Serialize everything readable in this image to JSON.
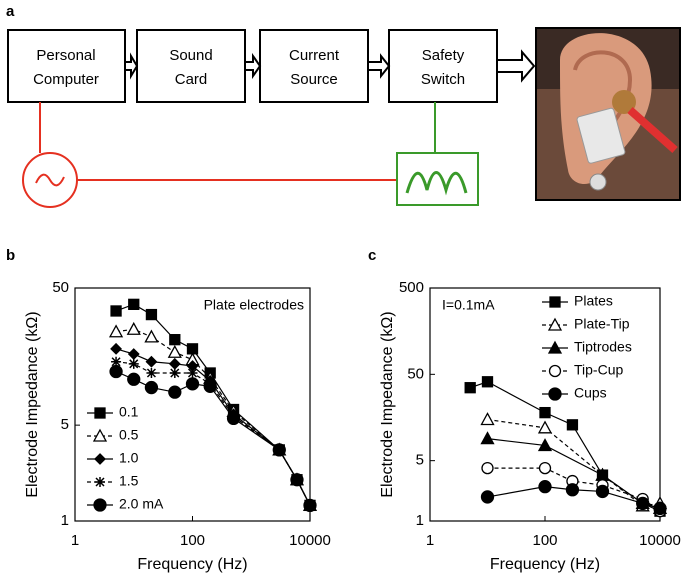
{
  "panel_labels": [
    "a",
    "b",
    "c"
  ],
  "diagram": {
    "boxes": [
      [
        "Personal",
        "Computer"
      ],
      [
        "Sound",
        "Card"
      ],
      [
        "Current",
        "Source"
      ],
      [
        "Safety",
        "Switch"
      ]
    ]
  },
  "chart_data": [
    {
      "type": "line",
      "annotation": "Plate electrodes",
      "xlabel": "Frequency (Hz)",
      "ylabel": "Electrode Impedance (kΩ)",
      "log_x": true,
      "log_y": true,
      "xlim": [
        1,
        10000
      ],
      "xticks": [
        1,
        100,
        10000
      ],
      "ylim": [
        1,
        50
      ],
      "yticks": [
        1,
        5,
        50
      ],
      "legend": "lower left",
      "x": [
        5,
        10,
        20,
        50,
        100,
        200,
        500,
        3000,
        6000,
        10000
      ],
      "series": [
        {
          "name": "0.1",
          "color": "#000000",
          "marker": "square",
          "dashed": false,
          "values": [
            34,
            38,
            32,
            21,
            18,
            12,
            6.5,
            3.3,
            2.0,
            1.3
          ]
        },
        {
          "name": "0.5",
          "color": "#000000",
          "marker": "triangle-open",
          "dashed": true,
          "values": [
            24,
            25,
            22,
            17,
            15,
            11,
            6.3,
            3.3,
            2.0,
            1.3
          ]
        },
        {
          "name": "1.0",
          "color": "#000000",
          "marker": "diamond",
          "dashed": false,
          "values": [
            18,
            16.5,
            14.5,
            14,
            13.5,
            10.5,
            6.0,
            3.3,
            2.0,
            1.3
          ]
        },
        {
          "name": "1.5",
          "color": "#000000",
          "marker": "star",
          "dashed": true,
          "values": [
            14.5,
            14,
            12,
            12,
            12,
            10,
            5.8,
            3.3,
            2.0,
            1.3
          ]
        },
        {
          "name": "2.0 mA",
          "color": "#000000",
          "marker": "circle",
          "dashed": false,
          "values": [
            12.3,
            10.8,
            9.4,
            8.7,
            10,
            9.6,
            5.6,
            3.3,
            2.0,
            1.3
          ]
        }
      ]
    },
    {
      "type": "line",
      "annotation": "I=0.1mA",
      "xlabel": "Frequency (Hz)",
      "ylabel": "Electrode Impedance (kΩ)",
      "log_x": true,
      "log_y": true,
      "xlim": [
        1,
        10000
      ],
      "xticks": [
        1,
        100,
        10000
      ],
      "ylim": [
        1,
        500
      ],
      "yticks": [
        1,
        5,
        50,
        500
      ],
      "legend": "upper right",
      "series": [
        {
          "name": "Plates",
          "color": "#000000",
          "marker": "square",
          "dashed": false,
          "x": [
            5,
            10,
            100,
            300,
            1000,
            5000,
            10000
          ],
          "values": [
            35,
            41,
            18,
            13,
            3.4,
            1.6,
            1.3
          ]
        },
        {
          "name": "Plate-Tip",
          "color": "#000000",
          "marker": "triangle-open",
          "dashed": true,
          "x": [
            10,
            100,
            1000,
            5000,
            10000
          ],
          "values": [
            15,
            12,
            3.4,
            1.5,
            1.6
          ]
        },
        {
          "name": "Tiptrodes",
          "color": "#000000",
          "marker": "triangle",
          "dashed": false,
          "x": [
            10,
            100,
            1000,
            5000,
            10000
          ],
          "values": [
            9,
            7.5,
            3.4,
            1.6,
            1.4
          ]
        },
        {
          "name": "Tip-Cup",
          "color": "#000000",
          "marker": "circle-open",
          "dashed": true,
          "x": [
            10,
            100,
            300,
            1000,
            5000,
            10000
          ],
          "values": [
            4.1,
            4.1,
            2.9,
            2.6,
            1.8,
            1.3
          ]
        },
        {
          "name": "Cups",
          "color": "#000000",
          "marker": "circle",
          "dashed": false,
          "x": [
            10,
            100,
            300,
            1000,
            5000,
            10000
          ],
          "values": [
            1.9,
            2.5,
            2.3,
            2.2,
            1.6,
            1.4
          ]
        }
      ]
    }
  ]
}
